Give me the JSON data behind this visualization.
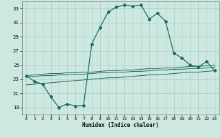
{
  "xlabel": "Humidex (Indice chaleur)",
  "background_color": "#cce8e0",
  "grid_color": "#aacfc8",
  "line_color": "#1a6b5a",
  "xlim": [
    -0.5,
    23.5
  ],
  "ylim": [
    18.0,
    34.0
  ],
  "yticks": [
    19,
    21,
    23,
    25,
    27,
    29,
    31,
    33
  ],
  "xticks": [
    0,
    1,
    2,
    3,
    4,
    5,
    6,
    7,
    8,
    9,
    10,
    11,
    12,
    13,
    14,
    15,
    16,
    17,
    18,
    19,
    20,
    21,
    22,
    23
  ],
  "main": [
    23.5,
    22.7,
    22.3,
    20.5,
    19.0,
    19.5,
    19.2,
    19.3,
    28.0,
    30.3,
    32.5,
    33.2,
    33.5,
    33.3,
    33.5,
    31.5,
    32.3,
    31.2,
    26.7,
    26.0,
    25.0,
    24.7,
    25.5,
    24.2
  ],
  "line1": [
    23.5,
    23.6,
    23.7,
    23.8,
    23.8,
    23.9,
    23.9,
    24.0,
    24.0,
    24.1,
    24.2,
    24.2,
    24.3,
    24.3,
    24.4,
    24.5,
    24.5,
    24.6,
    24.6,
    24.7,
    24.8,
    24.8,
    24.9,
    25.0
  ],
  "line2": [
    23.3,
    23.4,
    23.5,
    23.5,
    23.6,
    23.6,
    23.7,
    23.7,
    23.8,
    23.9,
    23.9,
    24.0,
    24.0,
    24.1,
    24.1,
    24.2,
    24.3,
    24.3,
    24.4,
    24.4,
    24.5,
    24.5,
    24.6,
    24.7
  ],
  "line3": [
    22.2,
    22.3,
    22.4,
    22.5,
    22.6,
    22.7,
    22.8,
    22.9,
    23.0,
    23.1,
    23.2,
    23.2,
    23.3,
    23.4,
    23.5,
    23.6,
    23.6,
    23.7,
    23.8,
    23.9,
    24.0,
    24.0,
    24.1,
    24.2
  ]
}
